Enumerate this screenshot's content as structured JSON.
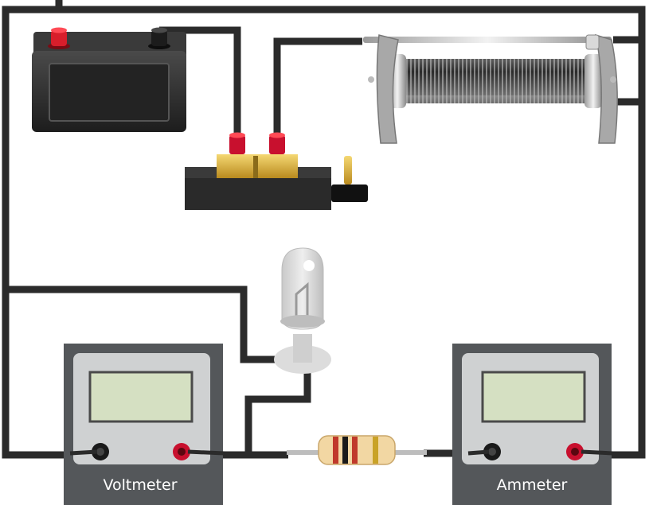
{
  "voltmeter": {
    "label": "Voltmeter"
  },
  "ammeter": {
    "label": "Ammeter"
  },
  "colors": {
    "wire": "#2b2b2b",
    "meter_body": "#54575a",
    "meter_face": "#cfd1d2",
    "meter_screen": "#d5e0c2",
    "terminal_red": "#c8102e",
    "battery_body": "#2e2e2e",
    "switch_brass": "#e0b43a",
    "resistor_body": "#f2d7a3"
  },
  "components": [
    "battery",
    "switch",
    "rheostat",
    "lamp",
    "resistor",
    "voltmeter",
    "ammeter"
  ],
  "resistor_bands": [
    "#c0392b",
    "#1a1a1a",
    "#c0392b",
    "#c9a227"
  ]
}
